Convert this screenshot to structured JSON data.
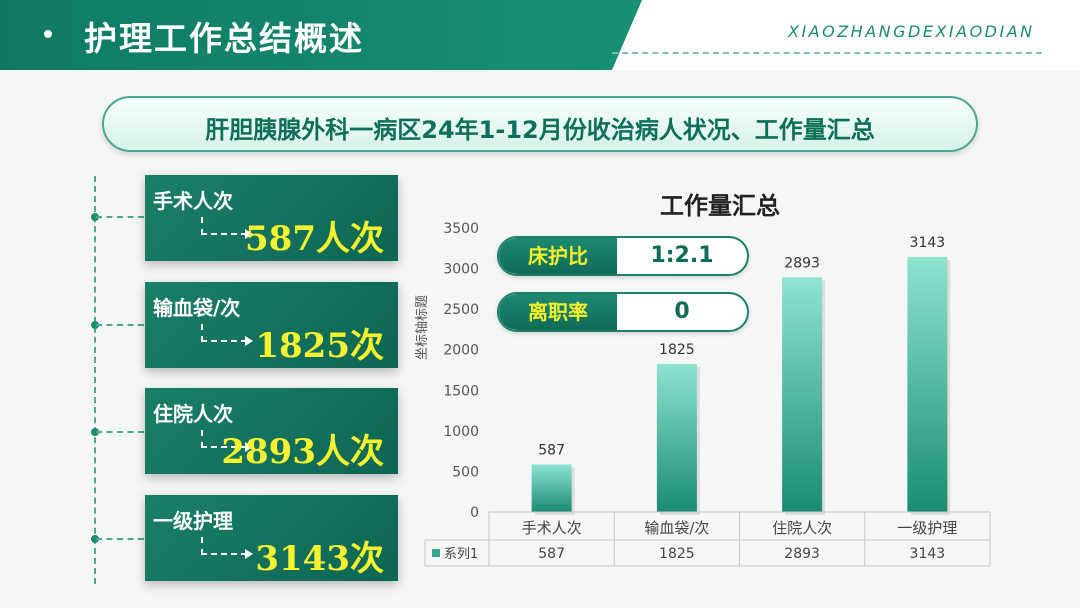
{
  "header": {
    "title": "护理工作总结概述",
    "brand": "XIAOZHANGDEXIAODIAN"
  },
  "subtitle": "肝胆胰腺外科一病区24年1-12月份收治病人状况、工作量汇总",
  "cards": [
    {
      "label": "手术人次",
      "value": "587人次"
    },
    {
      "label": "输血袋/次",
      "value": "1825次"
    },
    {
      "label": "住院人次",
      "value": "2893人次"
    },
    {
      "label": "一级护理",
      "value": "3143次"
    }
  ],
  "indicators": [
    {
      "label": "床护比",
      "value": "1:2.1"
    },
    {
      "label": "离职率",
      "value": "0"
    }
  ],
  "colors": {
    "primary": "#0f7a63",
    "accent": "#f6f230",
    "bar_top": "#8fe3d2",
    "bar_bottom": "#1a8c73"
  },
  "chart_data": {
    "type": "bar",
    "title": "工作量汇总",
    "ylabel": "坐标轴标题",
    "xlabel": "",
    "categories": [
      "手术人次",
      "输血袋/次",
      "住院人次",
      "一级护理"
    ],
    "series": [
      {
        "name": "系列1",
        "values": [
          587,
          1825,
          2893,
          3143
        ]
      }
    ],
    "ylim": [
      0,
      3500
    ],
    "yticks": [
      0,
      500,
      1000,
      1500,
      2000,
      2500,
      3000,
      3500
    ],
    "data_labels": true,
    "data_table": true,
    "grid": false
  }
}
